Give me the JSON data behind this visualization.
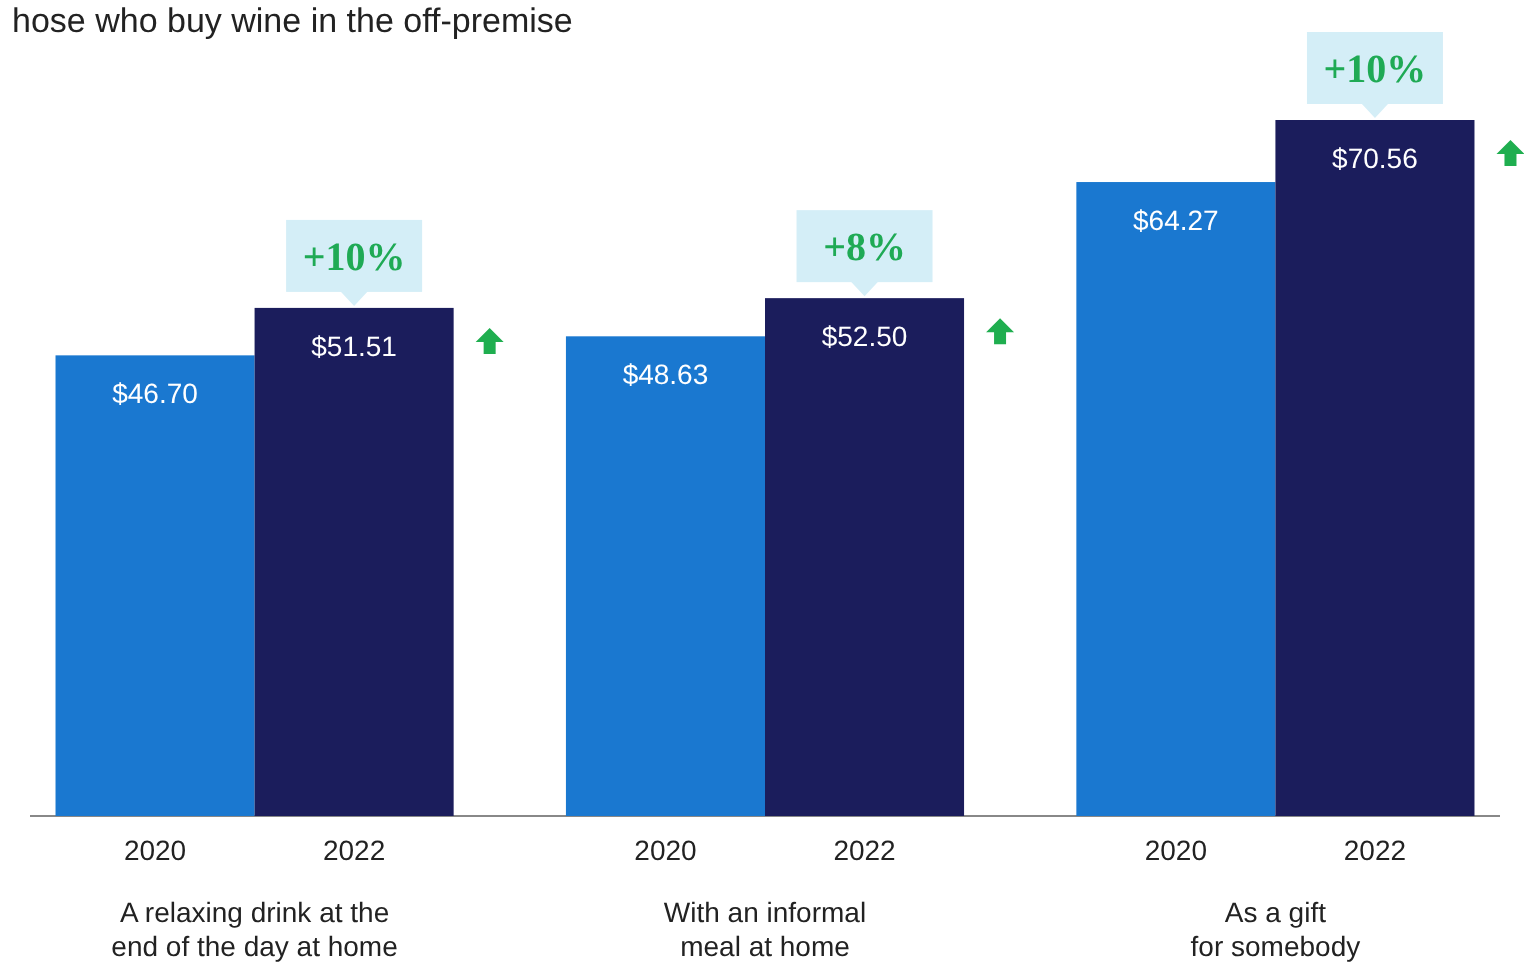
{
  "chart_data": {
    "type": "bar",
    "title": "hose who buy wine in the off-premise",
    "categories": [
      "A relaxing drink at the end of the day at home",
      "With an informal meal at home",
      "As a gift for somebody"
    ],
    "series": [
      {
        "name": "2020",
        "color": "#1a78d0",
        "values": [
          46.7,
          48.63,
          64.27
        ],
        "value_labels": [
          "$46.70",
          "$48.63",
          "$64.27"
        ]
      },
      {
        "name": "2022",
        "color": "#1b1d5c",
        "values": [
          51.51,
          52.5,
          70.56
        ],
        "value_labels": [
          "$51.51",
          "$52.50",
          "$70.56"
        ]
      }
    ],
    "annotations": [
      {
        "text": "+10%",
        "x": "A relaxing drink at the end of the day at home",
        "y": 51.51
      },
      {
        "text": "+8%",
        "x": "With an informal meal at home",
        "y": 52.5
      },
      {
        "text": "+10%",
        "x": "As a gift for somebody",
        "y": 70.56
      }
    ]
  }
}
